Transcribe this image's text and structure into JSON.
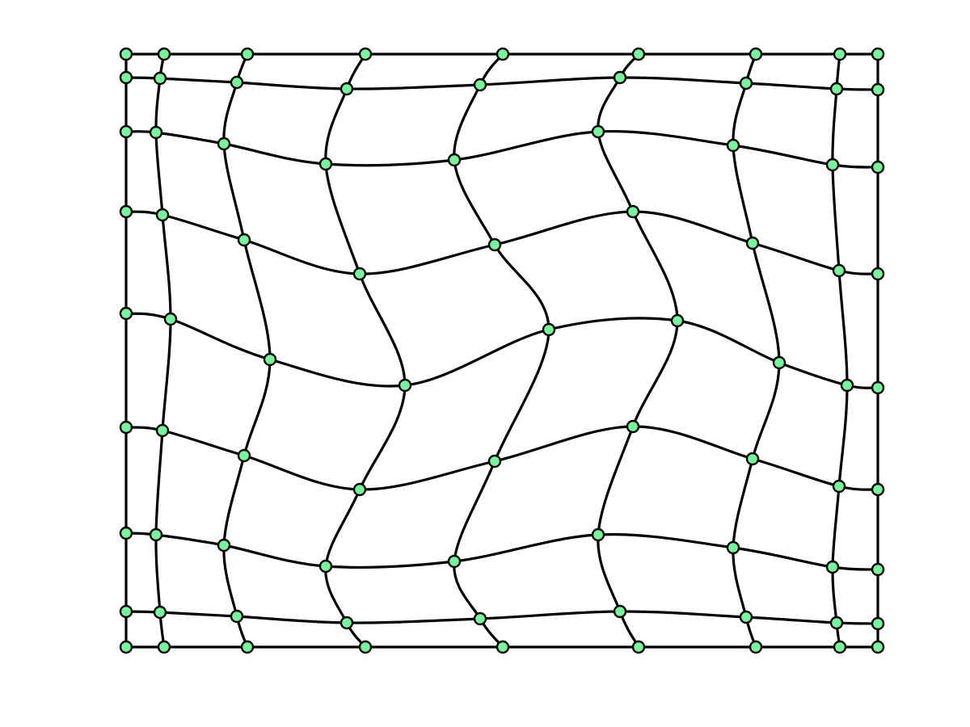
{
  "diagram": {
    "kind": "warped-mesh-grid",
    "node_fill": "#77f59a",
    "node_stroke": "#000000",
    "line_color": "#000000",
    "background": "#ffffff",
    "grid_rows": 9,
    "grid_cols": 9
  }
}
